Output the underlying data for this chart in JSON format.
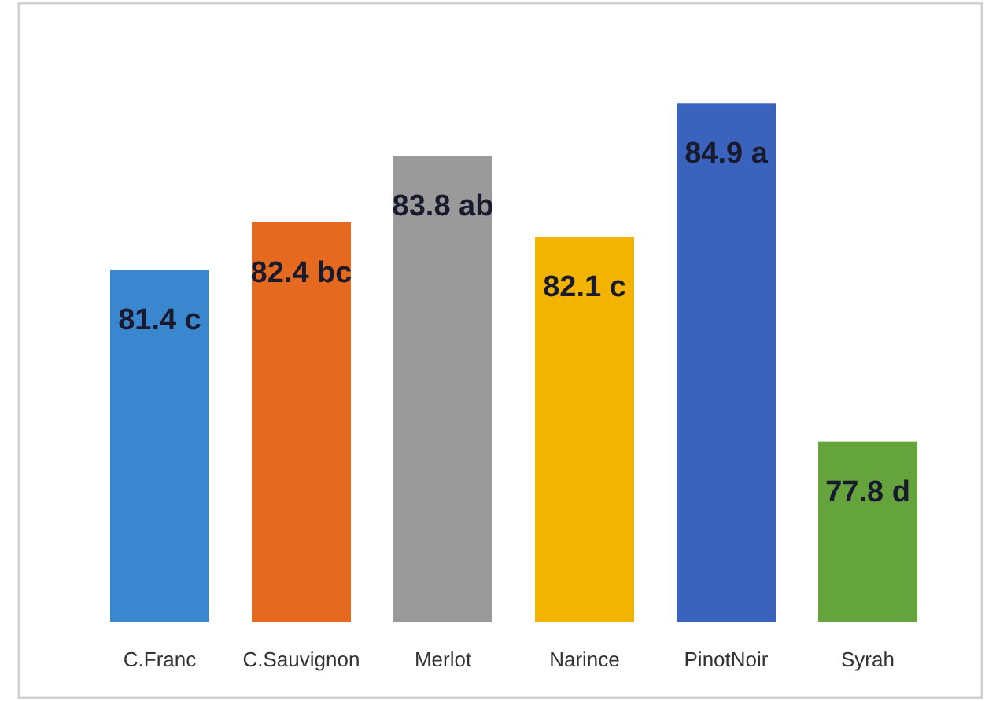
{
  "chart_data": {
    "type": "bar",
    "categories": [
      "C.Franc",
      "C.Sauvignon",
      "Merlot",
      "Narince",
      "PinotNoir",
      "Syrah"
    ],
    "values": [
      81.4,
      82.4,
      83.8,
      82.1,
      84.9,
      77.8
    ],
    "colors": [
      "#3a87d0",
      "#e56a1f",
      "#9a9a9a",
      "#f2b400",
      "#3a63be",
      "#65a33d"
    ],
    "value_labels": [
      "81.4 c",
      "82.4 bc",
      "83.8 ab",
      "82.1 c",
      "84.9 a",
      "77.8 d"
    ],
    "ylim": [
      74,
      87
    ]
  }
}
